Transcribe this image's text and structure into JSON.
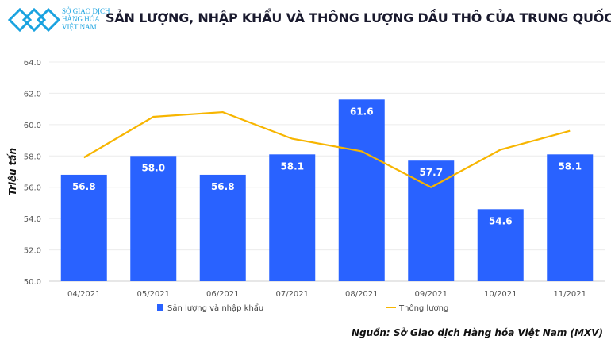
{
  "logo": {
    "line1": "SỞ GIAO DỊCH",
    "line2": "HÀNG HÓA",
    "line3": "VIỆT NAM"
  },
  "chart_data": {
    "type": "bar+line",
    "title": "SẢN LƯỢNG, NHẬP KHẨU VÀ THÔNG LƯỢNG DẦU THÔ CỦA TRUNG QUỐC",
    "ylabel": "Triệu tấn",
    "ylim": [
      50,
      64
    ],
    "yticks": [
      "50.0",
      "52.0",
      "54.0",
      "56.0",
      "58.0",
      "60.0",
      "62.0",
      "64.0"
    ],
    "grid": true,
    "legend_position": "bottom",
    "categories": [
      "04/2021",
      "05/2021",
      "06/2021",
      "07/2021",
      "08/2021",
      "09/2021",
      "10/2021",
      "11/2021"
    ],
    "series": [
      {
        "name": "Sản lượng và nhập khẩu",
        "type": "bar",
        "color": "#2962ff",
        "values": [
          56.8,
          58.0,
          56.8,
          58.1,
          61.6,
          57.7,
          54.6,
          58.1
        ],
        "labels": [
          "56.8",
          "58.0",
          "56.8",
          "58.1",
          "61.6",
          "57.7",
          "54.6",
          "58.1"
        ]
      },
      {
        "name": "Thông lượng",
        "type": "line",
        "color": "#f7b500",
        "values": [
          57.9,
          60.5,
          60.8,
          59.1,
          58.3,
          56.0,
          58.4,
          59.6
        ]
      }
    ]
  },
  "source": "Nguồn: Sở Giao dịch Hàng hóa Việt Nam (MXV)"
}
